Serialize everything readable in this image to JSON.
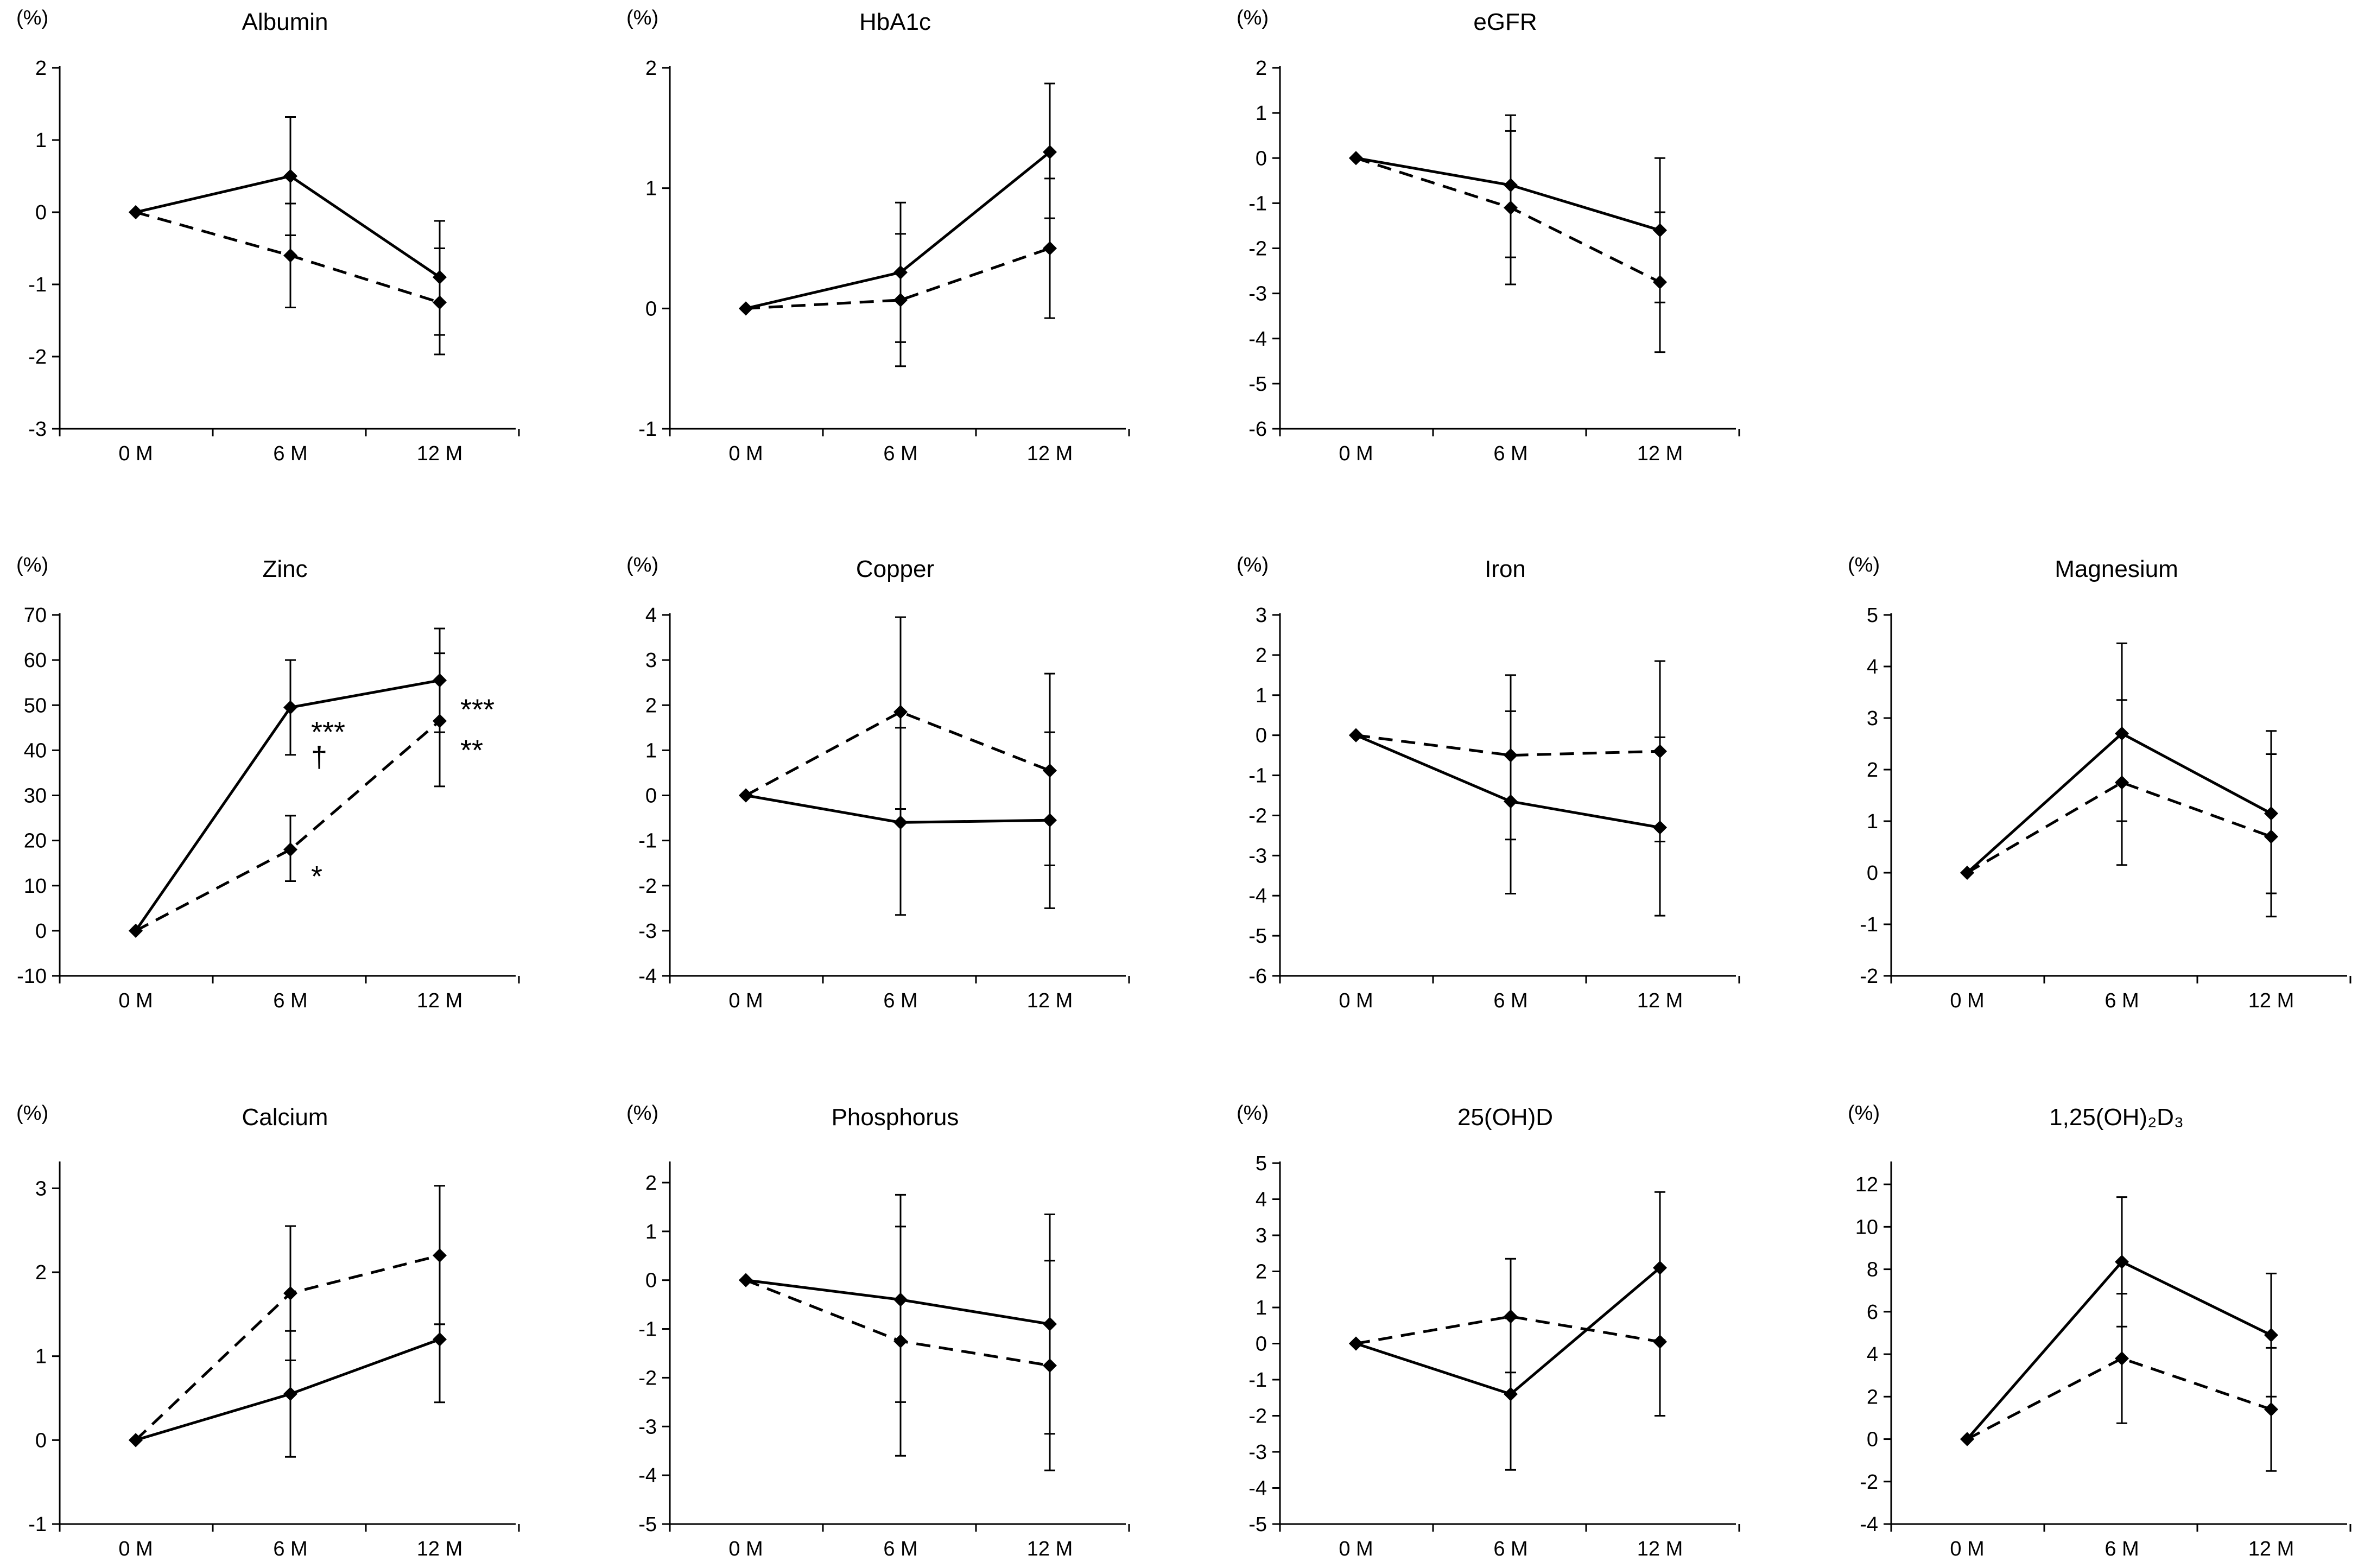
{
  "figure": {
    "x_categories": [
      "0 M",
      "6 M",
      "12 M"
    ],
    "unit_label": "(%)",
    "series_styles": [
      {
        "name": "solid",
        "dash": "none"
      },
      {
        "name": "dashed",
        "dash": "dashed"
      }
    ]
  },
  "chart_data": [
    {
      "type": "line",
      "title": "Albumin",
      "ylabel": "(%)",
      "ylim": [
        -3,
        2
      ],
      "yticks": [
        -3,
        -2,
        -1,
        0,
        1,
        2
      ],
      "categories": [
        "0 M",
        "6 M",
        "12 M"
      ],
      "series": [
        {
          "name": "solid",
          "values": [
            0,
            0.5,
            -0.9
          ],
          "err_low": [
            0,
            -0.32,
            -1.7
          ],
          "err_high": [
            0,
            1.32,
            -0.12
          ]
        },
        {
          "name": "dashed",
          "values": [
            0,
            -0.6,
            -1.25
          ],
          "err_low": [
            0,
            -1.32,
            -1.97
          ],
          "err_high": [
            0,
            0.12,
            -0.5
          ]
        }
      ],
      "annotations": []
    },
    {
      "type": "line",
      "title": "HbA1c",
      "ylabel": "(%)",
      "ylim": [
        -1,
        2
      ],
      "yticks": [
        -1,
        0,
        1,
        2
      ],
      "categories": [
        "0 M",
        "6 M",
        "12 M"
      ],
      "series": [
        {
          "name": "solid",
          "values": [
            0,
            0.3,
            1.3
          ],
          "err_low": [
            0,
            -0.28,
            0.75
          ],
          "err_high": [
            0,
            0.88,
            1.87
          ]
        },
        {
          "name": "dashed",
          "values": [
            0,
            0.07,
            0.5
          ],
          "err_low": [
            0,
            -0.48,
            -0.08
          ],
          "err_high": [
            0,
            0.62,
            1.08
          ]
        }
      ],
      "annotations": []
    },
    {
      "type": "line",
      "title": "eGFR",
      "ylabel": "(%)",
      "ylim": [
        -6,
        2
      ],
      "yticks": [
        -6,
        -5,
        -4,
        -3,
        -2,
        -1,
        0,
        1,
        2
      ],
      "categories": [
        "0 M",
        "6 M",
        "12 M"
      ],
      "series": [
        {
          "name": "solid",
          "values": [
            0,
            -0.6,
            -1.6
          ],
          "err_low": [
            0,
            -2.2,
            -3.2
          ],
          "err_high": [
            0,
            0.95,
            0.0
          ]
        },
        {
          "name": "dashed",
          "values": [
            0,
            -1.1,
            -2.75
          ],
          "err_low": [
            0,
            -2.8,
            -4.3
          ],
          "err_high": [
            0,
            0.6,
            -1.2
          ]
        }
      ],
      "annotations": []
    },
    {
      "type": "line",
      "title": "Zinc",
      "ylabel": "(%)",
      "ylim": [
        -10,
        70
      ],
      "yticks": [
        -10,
        0,
        10,
        20,
        30,
        40,
        50,
        60,
        70
      ],
      "categories": [
        "0 M",
        "6 M",
        "12 M"
      ],
      "series": [
        {
          "name": "solid",
          "values": [
            0,
            49.5,
            55.5
          ],
          "err_low": [
            0,
            39,
            44
          ],
          "err_high": [
            0,
            60,
            67
          ]
        },
        {
          "name": "dashed",
          "values": [
            0,
            18,
            46.5
          ],
          "err_low": [
            0,
            11,
            32
          ],
          "err_high": [
            0,
            25.5,
            61.5
          ]
        }
      ],
      "annotations": [
        {
          "text": "***",
          "x": "6 M",
          "y": 44,
          "side": "right"
        },
        {
          "text": "†",
          "x": "6 M",
          "y": 38.5,
          "side": "right"
        },
        {
          "text": "*",
          "x": "6 M",
          "y": 12,
          "side": "right"
        },
        {
          "text": "***",
          "x": "12 M",
          "y": 49,
          "side": "right"
        },
        {
          "text": "**",
          "x": "12 M",
          "y": 40,
          "side": "right"
        }
      ]
    },
    {
      "type": "line",
      "title": "Copper",
      "ylabel": "(%)",
      "ylim": [
        -4,
        4
      ],
      "yticks": [
        -4,
        -3,
        -2,
        -1,
        0,
        1,
        2,
        3,
        4
      ],
      "categories": [
        "0 M",
        "6 M",
        "12 M"
      ],
      "series": [
        {
          "name": "solid",
          "values": [
            0,
            -0.6,
            -0.55
          ],
          "err_low": [
            0,
            -2.65,
            -2.5
          ],
          "err_high": [
            0,
            1.5,
            1.4
          ]
        },
        {
          "name": "dashed",
          "values": [
            0,
            1.85,
            0.55
          ],
          "err_low": [
            0,
            -0.3,
            -1.55
          ],
          "err_high": [
            0,
            3.95,
            2.7
          ]
        }
      ],
      "annotations": []
    },
    {
      "type": "line",
      "title": "Iron",
      "ylabel": "(%)",
      "ylim": [
        -6,
        3
      ],
      "yticks": [
        -6,
        -5,
        -4,
        -3,
        -2,
        -1,
        0,
        1,
        2,
        3
      ],
      "categories": [
        "0 M",
        "6 M",
        "12 M"
      ],
      "series": [
        {
          "name": "solid",
          "values": [
            0,
            -1.65,
            -2.3
          ],
          "err_low": [
            0,
            -3.95,
            -4.5
          ],
          "err_high": [
            0,
            0.6,
            -0.05
          ]
        },
        {
          "name": "dashed",
          "values": [
            0,
            -0.5,
            -0.4
          ],
          "err_low": [
            0,
            -2.6,
            -2.65
          ],
          "err_high": [
            0,
            1.5,
            1.85
          ]
        }
      ],
      "annotations": []
    },
    {
      "type": "line",
      "title": "Magnesium",
      "ylabel": "(%)",
      "ylim": [
        -2,
        5
      ],
      "yticks": [
        -2,
        -1,
        0,
        1,
        2,
        3,
        4,
        5
      ],
      "categories": [
        "0 M",
        "6 M",
        "12 M"
      ],
      "series": [
        {
          "name": "solid",
          "values": [
            0,
            2.7,
            1.15
          ],
          "err_low": [
            0,
            1.0,
            -0.4
          ],
          "err_high": [
            0,
            4.45,
            2.75
          ]
        },
        {
          "name": "dashed",
          "values": [
            0,
            1.75,
            0.7
          ],
          "err_low": [
            0,
            0.15,
            -0.85
          ],
          "err_high": [
            0,
            3.35,
            2.3
          ]
        }
      ],
      "annotations": []
    },
    {
      "type": "line",
      "title": "Calcium",
      "ylabel": "(%)",
      "ylim": [
        -1,
        3.3
      ],
      "yticks": [
        -1,
        0,
        1,
        2,
        3
      ],
      "categories": [
        "0 M",
        "6 M",
        "12 M"
      ],
      "series": [
        {
          "name": "solid",
          "values": [
            0,
            0.55,
            1.2
          ],
          "err_low": [
            0,
            -0.2,
            0.45
          ],
          "err_high": [
            0,
            1.3,
            1.38
          ]
        },
        {
          "name": "dashed",
          "values": [
            0,
            1.75,
            2.2
          ],
          "err_low": [
            0,
            0.95,
            1.38
          ],
          "err_high": [
            0,
            2.55,
            3.03
          ]
        }
      ],
      "annotations": []
    },
    {
      "type": "line",
      "title": "Phosphorus",
      "ylabel": "(%)",
      "ylim": [
        -5,
        2.4
      ],
      "yticks": [
        -5,
        -4,
        -3,
        -2,
        -1,
        0,
        1,
        2
      ],
      "categories": [
        "0 M",
        "6 M",
        "12 M"
      ],
      "series": [
        {
          "name": "solid",
          "values": [
            0,
            -0.4,
            -0.9
          ],
          "err_low": [
            0,
            -2.5,
            -3.15
          ],
          "err_high": [
            0,
            1.75,
            1.35
          ]
        },
        {
          "name": "dashed",
          "values": [
            0,
            -1.25,
            -1.75
          ],
          "err_low": [
            0,
            -3.6,
            -3.9
          ],
          "err_high": [
            0,
            1.1,
            0.4
          ]
        }
      ],
      "annotations": []
    },
    {
      "type": "line",
      "title": "25(OH)D",
      "ylabel": "(%)",
      "ylim": [
        -5,
        5
      ],
      "yticks": [
        -5,
        -4,
        -3,
        -2,
        -1,
        0,
        1,
        2,
        3,
        4,
        5
      ],
      "categories": [
        "0 M",
        "6 M",
        "12 M"
      ],
      "series": [
        {
          "name": "solid",
          "values": [
            0,
            -1.4,
            2.1
          ],
          "err_low": [
            0,
            -3.5,
            0.1
          ],
          "err_high": [
            0,
            0.7,
            4.2
          ]
        },
        {
          "name": "dashed",
          "values": [
            0,
            0.75,
            0.05
          ],
          "err_low": [
            0,
            -0.8,
            -2.0
          ],
          "err_high": [
            0,
            2.35,
            2.1
          ]
        }
      ],
      "annotations": []
    },
    {
      "type": "line",
      "title": "1,25(OH)₂D₃",
      "ylabel": "(%)",
      "ylim": [
        -4,
        13
      ],
      "yticks": [
        -4,
        -2,
        0,
        2,
        4,
        6,
        8,
        10,
        12
      ],
      "categories": [
        "0 M",
        "6 M",
        "12 M"
      ],
      "series": [
        {
          "name": "solid",
          "values": [
            0,
            8.35,
            4.9
          ],
          "err_low": [
            0,
            5.3,
            2.0
          ],
          "err_high": [
            0,
            11.4,
            7.8
          ]
        },
        {
          "name": "dashed",
          "values": [
            0,
            3.8,
            1.4
          ],
          "err_low": [
            0,
            0.75,
            -1.5
          ],
          "err_high": [
            0,
            6.85,
            4.3
          ]
        }
      ],
      "annotations": []
    }
  ]
}
